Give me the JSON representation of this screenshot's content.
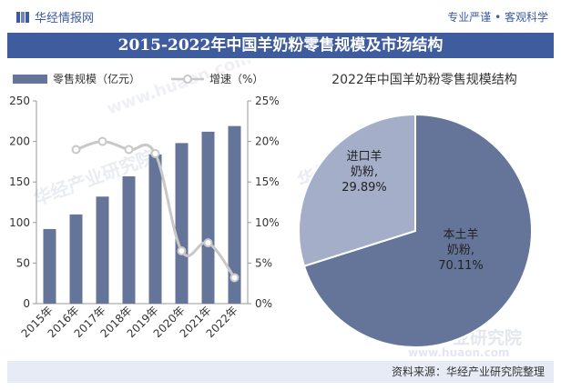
{
  "brand": {
    "name": "华经情报网",
    "icon": "brand-logo-icon"
  },
  "slogan": "专业严谨 • 客观科学",
  "title": "2015-2022年中国羊奶粉零售规模及市场结构",
  "source": "资料来源：华经产业研究院整理",
  "watermarks": [
    "华经产业研究院",
    "www.huaon.com"
  ],
  "colors": {
    "bar": "#647599",
    "line": "#c8c8c8",
    "pie_domestic": "#647599",
    "pie_import": "#a4aec8",
    "title_band": "#3f5c9e"
  },
  "chart_data": [
    {
      "type": "bar",
      "categories": [
        "2015年",
        "2016年",
        "2017年",
        "2018年",
        "2019年",
        "2020年",
        "2021年",
        "2022年"
      ],
      "series": [
        {
          "name": "零售规模（亿元）",
          "type": "bar",
          "axis": "left",
          "values": [
            92,
            110,
            132,
            157,
            184,
            198,
            212,
            219
          ]
        },
        {
          "name": "增速（%）",
          "type": "line",
          "axis": "right",
          "values": [
            null,
            19.0,
            20.0,
            19.0,
            18.5,
            6.5,
            7.5,
            3.2
          ]
        }
      ],
      "y_left": {
        "range": [
          0,
          250
        ],
        "ticks": [
          "0",
          "50",
          "100",
          "150",
          "200",
          "250"
        ]
      },
      "y_right": {
        "range": [
          0,
          25
        ],
        "ticks": [
          "0%",
          "5%",
          "10%",
          "15%",
          "20%",
          "25%"
        ]
      },
      "legend": "top-left",
      "grid": false
    },
    {
      "type": "pie",
      "title": "2022年中国羊奶粉零售规模结构",
      "slices": [
        {
          "label_lines": [
            "本土羊",
            "奶粉,",
            "70.11%"
          ],
          "value": 70.11
        },
        {
          "label_lines": [
            "进口羊",
            "奶粉,",
            "29.89%"
          ],
          "value": 29.89
        }
      ]
    }
  ]
}
